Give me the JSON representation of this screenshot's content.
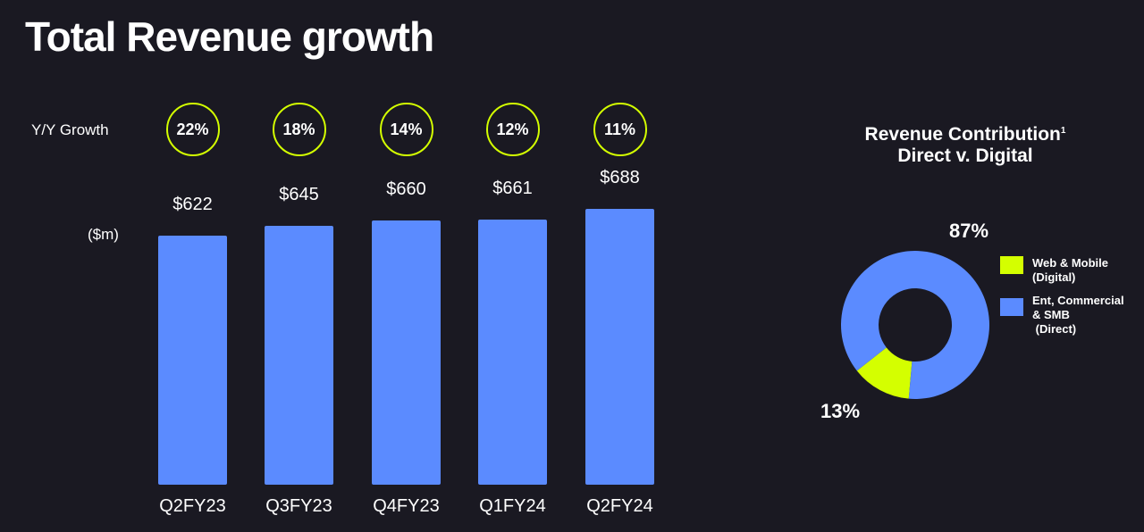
{
  "title": "Total Revenue growth",
  "colors": {
    "background": "#1a1922",
    "bar": "#5b8bff",
    "accent": "#d4ff00",
    "direct": "#5b8bff",
    "digital": "#d4ff00"
  },
  "chart_data": [
    {
      "type": "bar",
      "growth_label": "Y/Y Growth",
      "ylabel": "($m)",
      "categories": [
        "Q2FY23",
        "Q3FY23",
        "Q4FY23",
        "Q1FY24",
        "Q2FY24"
      ],
      "values": [
        622,
        645,
        660,
        661,
        688
      ],
      "value_labels": [
        "$622",
        "$645",
        "$660",
        "$661",
        "$688"
      ],
      "growth": [
        "22%",
        "18%",
        "14%",
        "12%",
        "11%"
      ],
      "ylim": [
        0,
        700
      ],
      "grid": false
    },
    {
      "type": "pie",
      "title": "Revenue Contribution",
      "title_superscript": "1",
      "subtitle": "Direct v. Digital",
      "donut": true,
      "legend": "right",
      "slices": [
        {
          "label": "Web & Mobile (Digital)",
          "legend_lines": [
            "Web & Mobile",
            "(Digital)"
          ],
          "value": 13,
          "value_label": "13%",
          "color": "#d4ff00"
        },
        {
          "label": "Ent, Commercial & SMB (Direct)",
          "legend_lines": [
            "Ent, Commercial",
            "& SMB",
            " (Direct)"
          ],
          "value": 87,
          "value_label": "87%",
          "color": "#5b8bff"
        }
      ]
    }
  ]
}
